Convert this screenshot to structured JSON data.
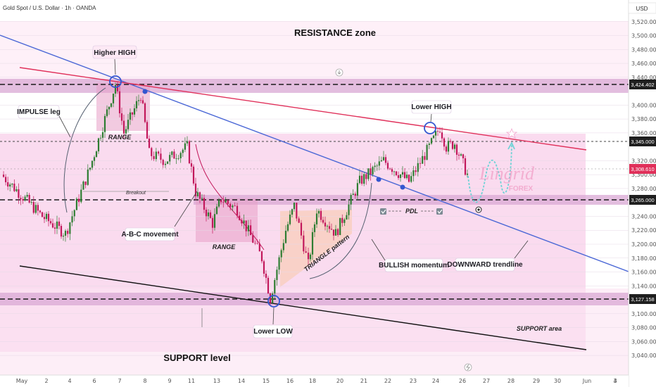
{
  "header": {
    "symbol_line": "Gold Spot / U.S. Dollar · 1h · OANDA",
    "currency": "USD"
  },
  "watermark": {
    "brand": "Lingrid",
    "sub": "FOREX"
  },
  "colors": {
    "pink_zone": "#f9d5ec",
    "band": "#d9a8d4",
    "bull": "#2e7d32",
    "bear": "#c2185b",
    "trend_blue": "#4a67d6",
    "red_line": "#e0305a",
    "projection": "#6fd3d6"
  },
  "annotations": {
    "resistance_zone": "RESISTANCE zone",
    "higher_high": "Higher HIGH",
    "impulse_leg": "IMPULSE leg",
    "range_1": "RANGE",
    "breakout": "Breakout",
    "abc_movement": "A-B-C movement",
    "range_2": "RANGE",
    "triangle_pattern": "TRIANGLE pattern",
    "bullish_momentum": "BULLISH momentum",
    "lower_low": "Lower LOW",
    "support_level": "SUPPORT level",
    "lower_high": "Lower HIGH",
    "pdl": "PDL",
    "downward_trendline": "DOWNWARD trendline",
    "support_area": "SUPPORT area"
  },
  "price_badges": {
    "level_3424": "3,424.402",
    "level_3345": "3,345.000",
    "last_price": "3,308.610",
    "level_3265": "3,265.000",
    "level_3127": "3,127.158"
  },
  "chart_data": {
    "type": "candlestick",
    "title": "Gold Spot / U.S. Dollar · 1h · OANDA",
    "ylim": [
      3030,
      3540
    ],
    "y_ticks": [
      "3,520.000",
      "3,500.000",
      "3,480.000",
      "3,460.000",
      "3,440.000",
      "3,400.000",
      "3,380.000",
      "3,360.000",
      "3,320.000",
      "3,300.000",
      "3,280.000",
      "3,240.000",
      "3,220.000",
      "3,200.000",
      "3,180.000",
      "3,160.000",
      "3,140.000",
      "3,100.000",
      "3,080.000",
      "3,060.000",
      "3,040.000"
    ],
    "x_ticks": [
      "May",
      "2",
      "4",
      "6",
      "7",
      "8",
      "9",
      "11",
      "13",
      "14",
      "15",
      "16",
      "18",
      "20",
      "21",
      "22",
      "23",
      "24",
      "26",
      "27",
      "28",
      "29",
      "30",
      "Jun",
      "3",
      "4"
    ],
    "key_levels": [
      3424.402,
      3345.0,
      3265.0,
      3127.158
    ],
    "price_path": [
      [
        "May",
        3300
      ],
      [
        "2",
        3240
      ],
      [
        "4",
        3215
      ],
      [
        "6",
        3310
      ],
      [
        "7",
        3430
      ],
      [
        "7",
        3360
      ],
      [
        "8",
        3415
      ],
      [
        "8",
        3330
      ],
      [
        "9",
        3320
      ],
      [
        "11",
        3340
      ],
      [
        "11",
        3275
      ],
      [
        "13",
        3230
      ],
      [
        "13",
        3265
      ],
      [
        "14",
        3250
      ],
      [
        "15",
        3180
      ],
      [
        "15",
        3122
      ],
      [
        "16",
        3220
      ],
      [
        "16",
        3255
      ],
      [
        "18",
        3170
      ],
      [
        "18",
        3250
      ],
      [
        "20",
        3215
      ],
      [
        "21",
        3290
      ],
      [
        "22",
        3320
      ],
      [
        "23",
        3290
      ],
      [
        "24",
        3345
      ],
      [
        "24",
        3368
      ],
      [
        "26",
        3340
      ],
      [
        "26",
        3345
      ],
      [
        "27",
        3300
      ]
    ],
    "projection": [
      3308,
      3270,
      3300,
      3275,
      3345
    ]
  }
}
